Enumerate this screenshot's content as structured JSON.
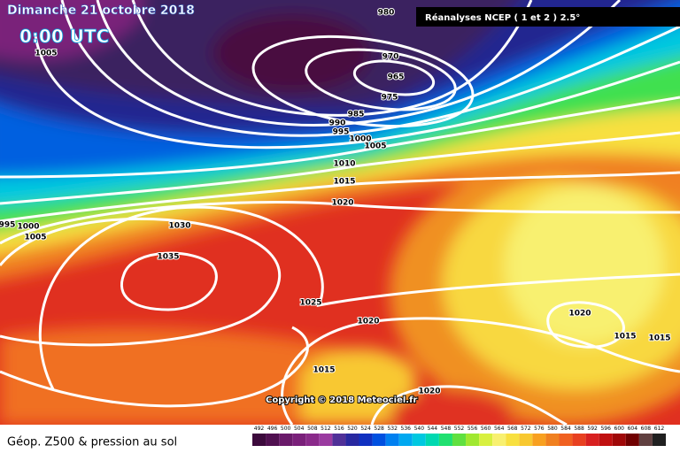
{
  "header": {
    "title": "Dimanche 21 octobre 2018",
    "time": "0:00 UTC",
    "source": "Réanalyses NCEP ( 1 et 2 ) 2.5°"
  },
  "isobar_labels": [
    "980",
    "1005",
    "970",
    "965",
    "975",
    "985",
    "990",
    "995",
    "1000",
    "1005",
    "1010",
    "1015",
    "1020",
    "995",
    "1000",
    "1005",
    "1030",
    "1035",
    "1025",
    "1020",
    "1020",
    "1015",
    "1015",
    "1015",
    "1020"
  ],
  "copyright": "Copyright © 2018 Meteociel.fr",
  "footer": {
    "title": "Géop. Z500 & pression au sol"
  },
  "scale": {
    "labels": [
      492,
      496,
      500,
      504,
      508,
      512,
      516,
      520,
      524,
      528,
      532,
      536,
      540,
      544,
      548,
      552,
      556,
      560,
      564,
      568,
      572,
      576,
      580,
      584,
      588,
      592,
      596,
      600,
      604,
      608,
      612
    ],
    "colors": [
      "#3c0a3c",
      "#501050",
      "#6a1a6a",
      "#7a207a",
      "#8a2a8a",
      "#9a3aa0",
      "#503098",
      "#2828a0",
      "#1030c0",
      "#0050e0",
      "#0080f0",
      "#00a8f0",
      "#00c8e0",
      "#00d8b0",
      "#20e070",
      "#60e040",
      "#a0e830",
      "#d8f040",
      "#f8f070",
      "#f8e040",
      "#f8c830",
      "#f8a020",
      "#f08020",
      "#f06020",
      "#e84020",
      "#d82020",
      "#c01010",
      "#a00808",
      "#700000",
      "#604040",
      "#202020"
    ]
  }
}
